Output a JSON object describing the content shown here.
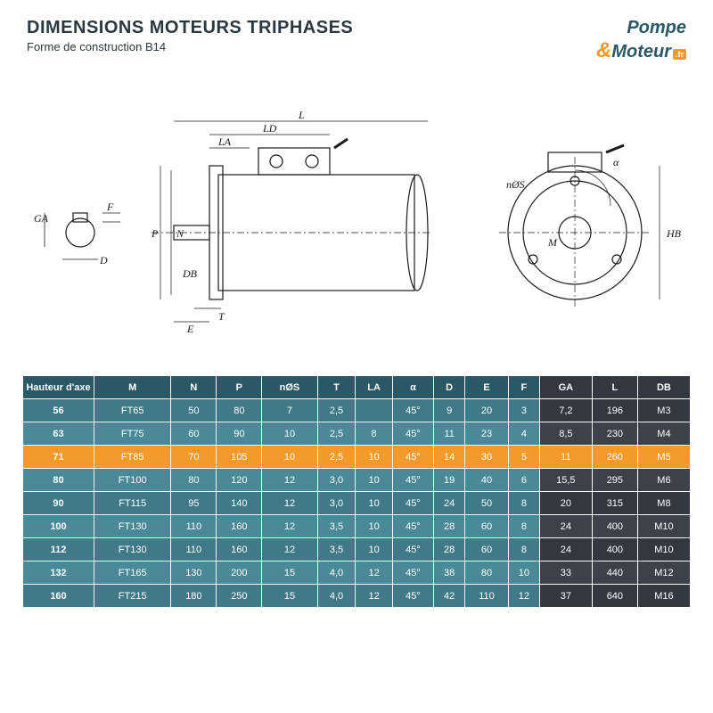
{
  "header": {
    "title": "DIMENSIONS MOTEURS TRIPHASES",
    "subtitle": "Forme de construction B14",
    "logo_line1": "Pompe",
    "logo_amp": "&",
    "logo_line2": "Moteur",
    "logo_tag": ".fr"
  },
  "diagram": {
    "labels": {
      "GA": "GA",
      "F": "F",
      "D": "D",
      "L": "L",
      "LD": "LD",
      "LA": "LA",
      "P": "P",
      "N": "N",
      "DB": "DB",
      "E": "E",
      "T": "T",
      "alpha": "α",
      "nOS": "nØS",
      "M": "M",
      "HB": "HB"
    }
  },
  "table": {
    "columns": [
      "Hauteur d'axe",
      "M",
      "N",
      "P",
      "nØS",
      "T",
      "LA",
      "α",
      "D",
      "E",
      "F",
      "GA",
      "L",
      "DB"
    ],
    "col_colors": [
      "th-main",
      "th-main",
      "th-main",
      "th-main",
      "th-main",
      "th-main",
      "th-main",
      "th-main",
      "th-main",
      "th-main",
      "th-main",
      "th-dark",
      "th-dark",
      "th-dark"
    ],
    "highlight_row_index": 2,
    "rows": [
      [
        "56",
        "FT65",
        "50",
        "80",
        "7",
        "2,5",
        "",
        "45°",
        "9",
        "20",
        "3",
        "7,2",
        "196",
        "M3"
      ],
      [
        "63",
        "FT75",
        "60",
        "90",
        "10",
        "2,5",
        "8",
        "45°",
        "11",
        "23",
        "4",
        "8,5",
        "230",
        "M4"
      ],
      [
        "71",
        "FT85",
        "70",
        "105",
        "10",
        "2,5",
        "10",
        "45°",
        "14",
        "30",
        "5",
        "11",
        "260",
        "M5"
      ],
      [
        "80",
        "FT100",
        "80",
        "120",
        "12",
        "3,0",
        "10",
        "45°",
        "19",
        "40",
        "6",
        "15,5",
        "295",
        "M6"
      ],
      [
        "90",
        "FT115",
        "95",
        "140",
        "12",
        "3,0",
        "10",
        "45°",
        "24",
        "50",
        "8",
        "20",
        "315",
        "M8"
      ],
      [
        "100",
        "FT130",
        "110",
        "160",
        "12",
        "3,5",
        "10",
        "45°",
        "28",
        "60",
        "8",
        "24",
        "400",
        "M10"
      ],
      [
        "112",
        "FT130",
        "110",
        "160",
        "12",
        "3,5",
        "10",
        "45°",
        "28",
        "60",
        "8",
        "24",
        "400",
        "M10"
      ],
      [
        "132",
        "FT165",
        "130",
        "200",
        "15",
        "4,0",
        "12",
        "45°",
        "38",
        "80",
        "10",
        "33",
        "440",
        "M12"
      ],
      [
        "160",
        "FT215",
        "180",
        "250",
        "15",
        "4,0",
        "12",
        "45°",
        "42",
        "110",
        "12",
        "37",
        "640",
        "M16"
      ]
    ],
    "colors": {
      "header_main": "#2a5866",
      "header_dark": "#333740",
      "row_main": "#407a88",
      "row_dark": "#333740",
      "row_alt_main": "#4a8a98",
      "row_alt_dark": "#3d414a",
      "highlight": "#f39a2a"
    }
  }
}
